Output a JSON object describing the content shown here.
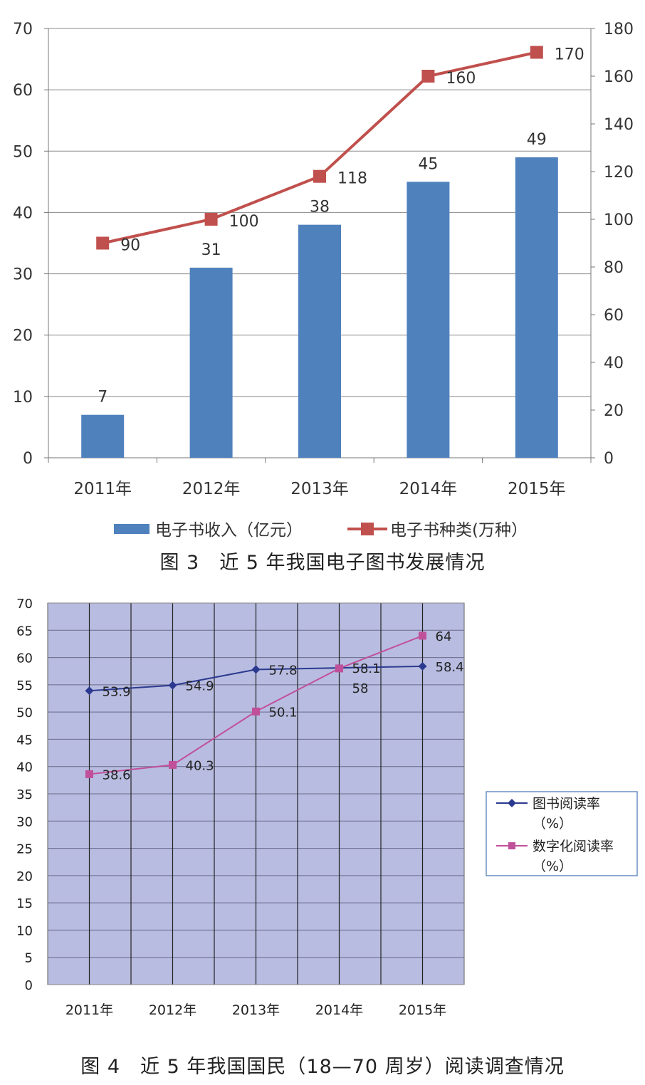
{
  "chart_data": [
    {
      "type": "bar",
      "categories": [
        "2011年",
        "2012年",
        "2013年",
        "2014年",
        "2015年"
      ],
      "series": [
        {
          "name": "电子书收入（亿元）",
          "type": "bar",
          "axis": "left",
          "values": [
            7,
            31,
            38,
            45,
            49
          ],
          "color": "#4f81bd"
        },
        {
          "name": "电子书种类(万种）",
          "type": "line",
          "axis": "right",
          "values": [
            90,
            100,
            118,
            160,
            170
          ],
          "color": "#c0504d"
        }
      ],
      "ylim_left": [
        0,
        70
      ],
      "yticks_left": [
        0,
        10,
        20,
        30,
        40,
        50,
        60,
        70
      ],
      "ylim_right": [
        0,
        180
      ],
      "yticks_right": [
        0,
        20,
        40,
        60,
        80,
        100,
        120,
        140,
        160,
        180
      ],
      "grid": true,
      "legend": "bottom",
      "title": "图 3　近 5 年我国电子图书发展情况"
    },
    {
      "type": "line",
      "categories": [
        "2011年",
        "2012年",
        "2013年",
        "2014年",
        "2015年"
      ],
      "series": [
        {
          "name": "图书阅读率（%）",
          "values": [
            53.9,
            54.9,
            57.8,
            58.1,
            58.4
          ],
          "labels": [
            "53.9",
            "54.9",
            "57.8",
            "58.1",
            "58.4"
          ],
          "color": "#2b3a8f",
          "marker": "diamond"
        },
        {
          "name": "数字化阅读率（%）",
          "values": [
            38.6,
            40.3,
            50.1,
            58,
            64
          ],
          "labels": [
            "38.6",
            "40.3",
            "50.1",
            "58",
            "64"
          ],
          "color": "#c0509a",
          "marker": "square"
        }
      ],
      "ylim": [
        0,
        70
      ],
      "yticks": [
        0,
        5,
        10,
        15,
        20,
        25,
        30,
        35,
        40,
        45,
        50,
        55,
        60,
        65,
        70
      ],
      "grid": true,
      "plot_bg": "#b8bce0",
      "legend": "right",
      "legend_lines": [
        [
          "图书阅读率",
          "（%）"
        ],
        [
          "数字化阅读率",
          "（%）"
        ]
      ],
      "title": "图 4　近 5 年我国国民（18—70 周岁）阅读调查情况"
    }
  ]
}
